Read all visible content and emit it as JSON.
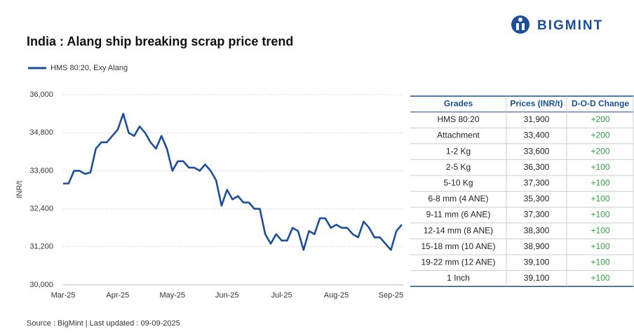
{
  "brand": "BIGMINT",
  "chart_data": {
    "type": "line",
    "title": "India : Alang ship breaking scrap price trend",
    "y_label": "INR/t",
    "categories": [
      "Mar-25",
      null,
      null,
      null,
      null,
      null,
      null,
      null,
      null,
      null,
      "Apr-25",
      null,
      null,
      null,
      null,
      null,
      null,
      null,
      null,
      null,
      "May-25",
      null,
      null,
      null,
      null,
      null,
      null,
      null,
      null,
      null,
      "Jun-25",
      null,
      null,
      null,
      null,
      null,
      null,
      null,
      null,
      null,
      "Jul-25",
      null,
      null,
      null,
      null,
      null,
      null,
      null,
      null,
      null,
      "Aug-25",
      null,
      null,
      null,
      null,
      null,
      null,
      null,
      null,
      null,
      "Sep-25",
      null,
      null
    ],
    "series": [
      {
        "name": "HMS 80:20, Exy Alang",
        "color": "#1b4f9c",
        "values": [
          33200,
          33200,
          33600,
          33600,
          33500,
          33550,
          34300,
          34500,
          34500,
          34700,
          34900,
          35400,
          34800,
          34700,
          35000,
          34800,
          34500,
          34300,
          34700,
          34300,
          33600,
          33900,
          33900,
          33700,
          33700,
          33600,
          33800,
          33600,
          33300,
          32500,
          33000,
          32700,
          32800,
          32600,
          32600,
          32400,
          32400,
          31600,
          31300,
          31600,
          31400,
          31400,
          31800,
          31700,
          31100,
          31700,
          31600,
          32100,
          32100,
          31800,
          31900,
          31800,
          31800,
          31600,
          31500,
          32000,
          31800,
          31500,
          31500,
          31300,
          31100,
          31700,
          31900
        ]
      }
    ],
    "ylim": [
      30000,
      36000
    ],
    "yticks": [
      {
        "value": 30000,
        "label": "30,000"
      },
      {
        "value": 31200,
        "label": "31,200"
      },
      {
        "value": 32400,
        "label": "32,400"
      },
      {
        "value": 33600,
        "label": "33,600"
      },
      {
        "value": 34800,
        "label": "34,800"
      },
      {
        "value": 36000,
        "label": "36,000"
      }
    ],
    "grid": true,
    "source": "Source : BigMint | Last updated : 09-09-2025"
  },
  "table": {
    "header": [
      "Grades",
      "Prices (INR/t)",
      "D-O-D Change"
    ],
    "rows": [
      [
        "HMS 80:20",
        "31,900",
        "+200"
      ],
      [
        "Attachment",
        "33,400",
        "+200"
      ],
      [
        "1-2 Kg",
        "33,600",
        "+200"
      ],
      [
        "2-5 Kg",
        "36,300",
        "+100"
      ],
      [
        "5-10 Kg",
        "37,300",
        "+100"
      ],
      [
        "6-8 mm (4 ANE)",
        "35,300",
        "+100"
      ],
      [
        "9-11 mm (6 ANE)",
        "37,300",
        "+100"
      ],
      [
        "12-14 mm (8 ANE)",
        "38,300",
        "+100"
      ],
      [
        "15-18 mm (10 ANE)",
        "38,900",
        "+100"
      ],
      [
        "19-22 mm (12 ANE)",
        "39,100",
        "+100"
      ],
      [
        "1 Inch",
        "39,100",
        "+100"
      ]
    ]
  }
}
